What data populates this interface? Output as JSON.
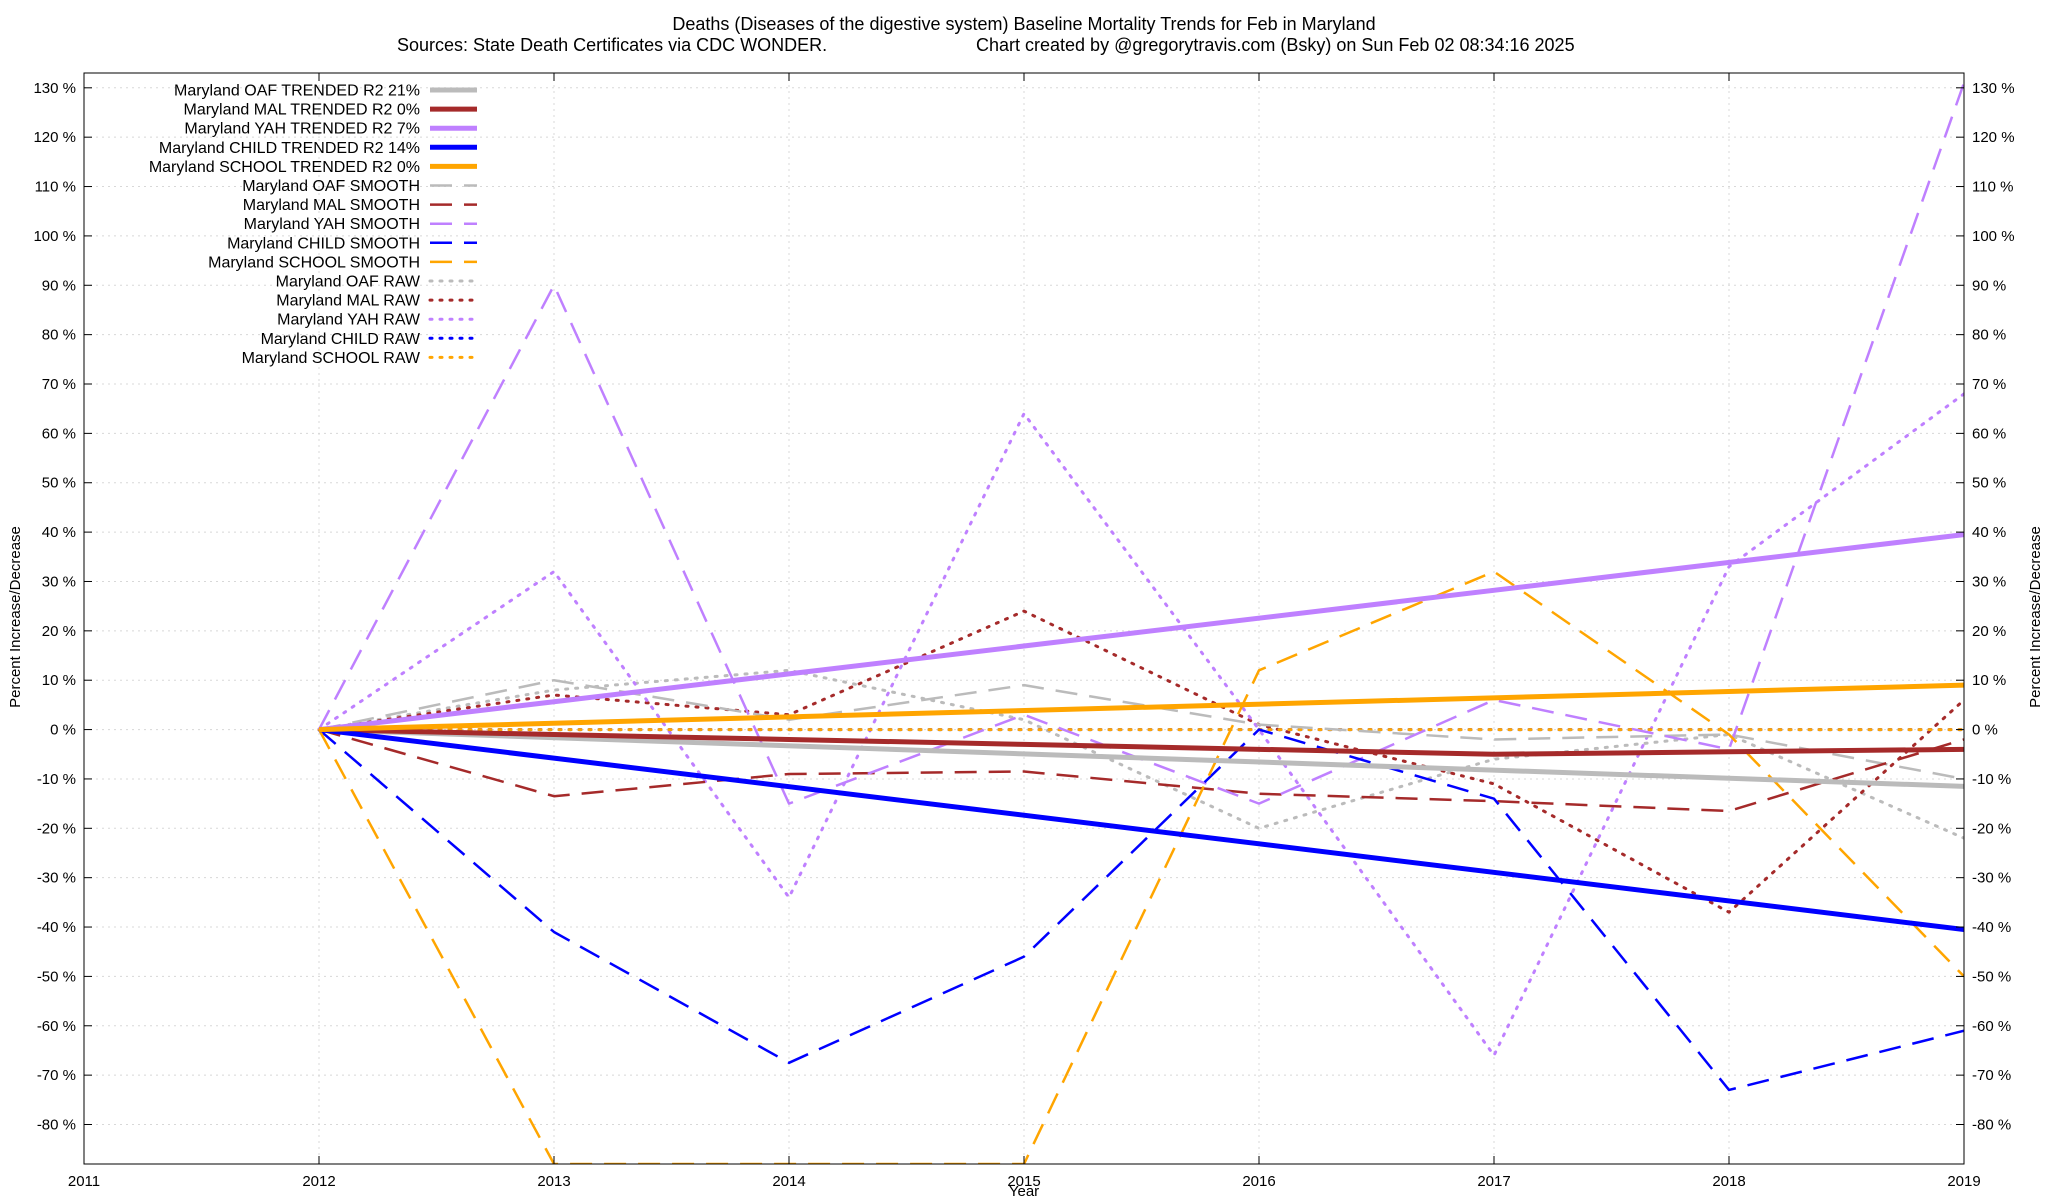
{
  "chart_data": {
    "type": "line",
    "title": "Deaths (Diseases of the digestive system)  Baseline Mortality Trends for Feb in Maryland",
    "subtitle_left": "Sources: State Death Certificates via CDC WONDER.",
    "subtitle_right": "Chart created by @gregorytravis.com (Bsky) on Sun Feb 02 08:34:16 2025",
    "xlabel": "Year",
    "ylabel": "Percent Increase/Decrease",
    "xlim": [
      2011,
      2019
    ],
    "ylim": [
      -88,
      133
    ],
    "x_ticks": [
      2011,
      2012,
      2013,
      2014,
      2015,
      2016,
      2017,
      2018,
      2019
    ],
    "x_tick_labels": [
      "2011",
      "2012",
      "2013",
      "2014",
      "2015",
      "2016",
      "2017",
      "2018",
      "2019"
    ],
    "y_ticks": [
      130,
      120,
      110,
      100,
      90,
      80,
      70,
      60,
      50,
      40,
      30,
      20,
      10,
      0,
      -10,
      -20,
      -30,
      -40,
      -50,
      -60,
      -70,
      -80
    ],
    "y_tick_labels": [
      "130 %",
      "120 %",
      "110 %",
      "100 %",
      "90 %",
      "80 %",
      "70 %",
      "60 %",
      "50 %",
      "40 %",
      "30 %",
      "20 %",
      "10 %",
      "0 %",
      "-10 %",
      "-20 %",
      "-30 %",
      "-40 %",
      "-50 %",
      "-60 %",
      "-70 %",
      "-80 %"
    ],
    "grid": true,
    "legend_position": "top-left",
    "series": [
      {
        "name": "Maryland OAF TRENDED R2  21%",
        "style": "solid",
        "color": "#bbbbbb",
        "x": [
          2012,
          2019
        ],
        "y": [
          0,
          -11.5
        ]
      },
      {
        "name": "Maryland MAL TRENDED R2   0%",
        "style": "solid",
        "color": "#a52a2a",
        "x": [
          2012,
          2013,
          2014,
          2015,
          2016,
          2017,
          2018,
          2019
        ],
        "y": [
          0,
          -1,
          -2,
          -3,
          -4,
          -5,
          -4.5,
          -4
        ]
      },
      {
        "name": "Maryland YAH TRENDED R2   7%",
        "style": "solid",
        "color": "#bf80ff",
        "x": [
          2012,
          2019
        ],
        "y": [
          0,
          39.5
        ]
      },
      {
        "name": "Maryland CHILD TRENDED R2  14%",
        "style": "solid",
        "color": "#0000ff",
        "x": [
          2012,
          2019
        ],
        "y": [
          0,
          -40.5
        ]
      },
      {
        "name": "Maryland SCHOOL TRENDED R2   0%",
        "style": "solid",
        "color": "#ffa500",
        "x": [
          2012,
          2019
        ],
        "y": [
          0,
          9
        ]
      },
      {
        "name": "Maryland OAF SMOOTH",
        "style": "dashed",
        "color": "#bbbbbb",
        "x": [
          2012,
          2013,
          2014,
          2015,
          2016,
          2017,
          2018,
          2019
        ],
        "y": [
          0,
          10,
          2,
          9,
          1,
          -2,
          -1,
          -10
        ]
      },
      {
        "name": "Maryland MAL SMOOTH",
        "style": "dashed",
        "color": "#a52a2a",
        "x": [
          2012,
          2013,
          2014,
          2015,
          2016,
          2017,
          2018,
          2019
        ],
        "y": [
          0,
          -13.5,
          -9,
          -8.5,
          -13,
          -14.5,
          -16.5,
          -2
        ]
      },
      {
        "name": "Maryland YAH SMOOTH",
        "style": "dashed",
        "color": "#bf80ff",
        "x": [
          2012,
          2013,
          2014,
          2015,
          2016,
          2017,
          2018,
          2019
        ],
        "y": [
          0,
          90,
          -15,
          3,
          -15,
          6,
          -4,
          131
        ]
      },
      {
        "name": "Maryland CHILD SMOOTH",
        "style": "dashed",
        "color": "#0000ff",
        "x": [
          2012,
          2013,
          2014,
          2015,
          2016,
          2017,
          2018,
          2019
        ],
        "y": [
          0,
          -41,
          -67.5,
          -46,
          0,
          -14,
          -73,
          -61
        ]
      },
      {
        "name": "Maryland SCHOOL SMOOTH",
        "style": "dashed",
        "color": "#ffa500",
        "x": [
          2012,
          2013,
          2014,
          2015,
          2016,
          2017,
          2018,
          2019
        ],
        "y": [
          0,
          -88,
          -88,
          -88,
          12,
          32,
          -1,
          -50
        ]
      },
      {
        "name": "Maryland OAF RAW",
        "style": "dotted",
        "color": "#bbbbbb",
        "x": [
          2012,
          2013,
          2014,
          2015,
          2016,
          2017,
          2018,
          2019
        ],
        "y": [
          0,
          8,
          12,
          2,
          -20,
          -6,
          -1,
          -22
        ]
      },
      {
        "name": "Maryland MAL RAW",
        "style": "dotted",
        "color": "#a52a2a",
        "x": [
          2012,
          2013,
          2014,
          2015,
          2016,
          2017,
          2018,
          2019
        ],
        "y": [
          0,
          7,
          3,
          24,
          1,
          -11,
          -37,
          6
        ]
      },
      {
        "name": "Maryland YAH RAW",
        "style": "dotted",
        "color": "#bf80ff",
        "x": [
          2012,
          2013,
          2014,
          2015,
          2016,
          2017,
          2018,
          2019
        ],
        "y": [
          0,
          32,
          -34,
          64,
          0,
          -66,
          33,
          68
        ]
      },
      {
        "name": "Maryland CHILD RAW",
        "style": "dotted",
        "color": "#0000ff",
        "x": [
          2012,
          2013,
          2014,
          2015,
          2016,
          2017,
          2018,
          2019
        ],
        "y": [
          0,
          0,
          0,
          0,
          0,
          0,
          0,
          0
        ]
      },
      {
        "name": "Maryland SCHOOL RAW",
        "style": "dotted",
        "color": "#ffa500",
        "x": [
          2012,
          2013,
          2014,
          2015,
          2016,
          2017,
          2018,
          2019
        ],
        "y": [
          0,
          0,
          0,
          0,
          0,
          0,
          0,
          0
        ]
      }
    ]
  }
}
